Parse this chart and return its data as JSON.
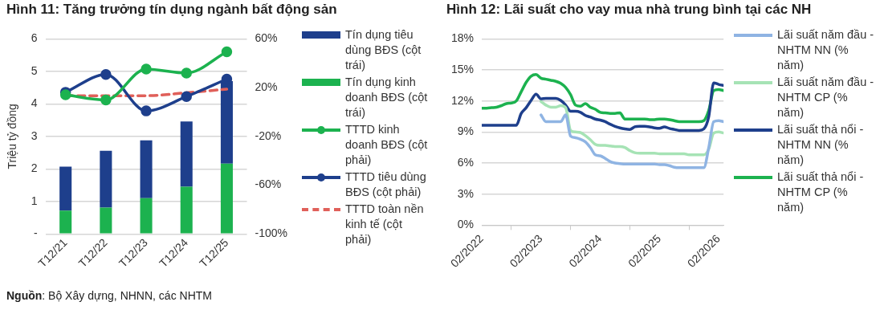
{
  "chart_data": [
    {
      "type": "bar",
      "title": "Hình 11: Tăng trưởng tín dụng ngành bất động sản",
      "ylabel": "Triệu tỷ đồng",
      "stacked": true,
      "categories": [
        "T12/21",
        "T12/22",
        "T12/23",
        "T12/24",
        "T12/25"
      ],
      "series": [
        {
          "name": "Tín dụng kinh doanh BĐS (cột trái)",
          "color": "#1cb24f",
          "values": [
            0.72,
            0.81,
            1.1,
            1.45,
            2.16
          ]
        },
        {
          "name": "Tín dụng tiêu dùng BĐS (cột trái)",
          "color": "#1e3f8c",
          "values": [
            1.35,
            1.75,
            1.78,
            2.01,
            2.54
          ]
        },
        {
          "name": "TTTD kinh doanh BĐS (cột phải)",
          "type": "line",
          "axis": "y2",
          "color": "#1cb24f",
          "marker": "circle",
          "values": [
            14.1,
            9.9,
            35.3,
            32,
            49.4
          ]
        },
        {
          "name": "TTTD tiêu dùng BĐS (cột phải)",
          "type": "line",
          "axis": "y2",
          "color": "#1e3f8c",
          "marker": "circle",
          "values": [
            16.2,
            30.8,
            0.9,
            12.7,
            27
          ]
        },
        {
          "name": "TTTD toàn nền kinh tế (cột phải)",
          "type": "line",
          "axis": "y2",
          "color": "#e0605a",
          "marker": "none",
          "line_style": "dashed",
          "values": [
            13.4,
            13.4,
            13.4,
            15.8,
            18.8
          ]
        }
      ],
      "ylim": [
        0,
        6
      ],
      "yticks": [
        {
          "value": 0,
          "label": "-"
        },
        1,
        2,
        3,
        4,
        5,
        6
      ],
      "y2lim": [
        -100,
        60
      ],
      "y2ticks": [
        {
          "value": -100,
          "label": "-100%"
        },
        {
          "value": -60,
          "label": "-60%"
        },
        {
          "value": -20,
          "label": "-20%"
        },
        {
          "value": 20,
          "label": "20%"
        },
        {
          "value": 60,
          "label": "60%"
        }
      ],
      "grid": "y",
      "legend": "right",
      "annotations": [
        "Nguồn: Bộ Xây dựng, NHNN, các NHTM"
      ]
    },
    {
      "type": "line",
      "title": "Hình 12: Lãi suất cho vay mua nhà trung bình tại các NH",
      "x": [
        "2022-02",
        "2022-03",
        "2022-04",
        "2022-05",
        "2022-06",
        "2022-07",
        "2022-08",
        "2022-09",
        "2022-10",
        "2022-11",
        "2022-12",
        "2023-01",
        "2023-02",
        "2023-03",
        "2023-04",
        "2023-05",
        "2023-06",
        "2023-07",
        "2023-08",
        "2023-09",
        "2023-10",
        "2023-11",
        "2023-12",
        "2024-01",
        "2024-02",
        "2024-03",
        "2024-04",
        "2024-05",
        "2024-06",
        "2024-07",
        "2024-08",
        "2024-09",
        "2024-10",
        "2024-11",
        "2024-12",
        "2025-01",
        "2025-02",
        "2025-03",
        "2025-04",
        "2025-05",
        "2025-06",
        "2025-07",
        "2025-08",
        "2025-09",
        "2025-10",
        "2025-11",
        "2025-12",
        "2026-01",
        "2026-02",
        "2026-03"
      ],
      "series": [
        {
          "name": "Lãi suất năm đầu - NHTM NN (% năm)",
          "color": "#8fb4e3",
          "values": [
            null,
            null,
            null,
            null,
            null,
            null,
            null,
            null,
            null,
            null,
            null,
            null,
            10.65,
            10.0,
            10.0,
            10.0,
            10.0,
            10.65,
            8.6,
            8.45,
            8.3,
            8.05,
            7.5,
            6.8,
            6.7,
            6.45,
            6.15,
            6.0,
            5.95,
            5.9,
            5.9,
            5.9,
            5.9,
            5.9,
            5.9,
            5.9,
            5.85,
            5.85,
            5.75,
            5.6,
            5.55,
            5.55,
            5.55,
            5.55,
            5.55,
            5.55,
            7.5,
            10.0,
            10.1,
            10.0
          ]
        },
        {
          "name": "Lãi suất năm đầu - NHTM CP (% năm)",
          "color": "#a6e3b5",
          "values": [
            null,
            null,
            null,
            null,
            null,
            null,
            null,
            null,
            null,
            null,
            null,
            null,
            11.95,
            11.6,
            11.4,
            11.4,
            11.55,
            11.35,
            9.15,
            9.0,
            8.95,
            8.65,
            8.25,
            7.8,
            7.7,
            7.7,
            7.65,
            7.6,
            7.6,
            7.5,
            7.2,
            7.0,
            6.95,
            6.95,
            6.95,
            6.95,
            6.9,
            6.9,
            6.9,
            6.9,
            6.9,
            6.9,
            6.8,
            6.8,
            6.8,
            6.8,
            7.35,
            8.9,
            9.0,
            8.9
          ]
        },
        {
          "name": "Lãi suất thả nổi - NHTM NN (% năm)",
          "color": "#1e3f8c",
          "values": [
            9.65,
            9.65,
            9.65,
            9.65,
            9.65,
            9.65,
            9.65,
            9.65,
            10.8,
            11.35,
            12.05,
            12.65,
            12.2,
            12.25,
            12.25,
            12.25,
            12.05,
            11.6,
            11.0,
            11.0,
            10.9,
            10.6,
            10.45,
            10.25,
            10.15,
            10.0,
            9.75,
            9.55,
            9.4,
            9.3,
            9.25,
            9.5,
            9.55,
            9.55,
            9.5,
            9.4,
            9.35,
            9.5,
            9.35,
            9.25,
            9.15,
            9.15,
            9.15,
            9.15,
            9.15,
            9.3,
            10.5,
            13.75,
            13.6,
            13.5
          ]
        },
        {
          "name": "Lãi suất thả nổi - NHTM CP (% năm)",
          "color": "#1cb24f",
          "values": [
            11.3,
            11.3,
            11.35,
            11.4,
            11.55,
            11.75,
            11.8,
            12.0,
            12.9,
            13.8,
            14.4,
            14.55,
            14.2,
            14.1,
            14.0,
            13.9,
            13.7,
            13.3,
            12.6,
            11.6,
            11.5,
            11.75,
            11.4,
            11.2,
            10.9,
            10.85,
            10.8,
            10.8,
            10.85,
            10.25,
            10.25,
            10.25,
            10.25,
            10.25,
            10.2,
            10.2,
            10.25,
            10.25,
            10.2,
            10.1,
            10.0,
            10.0,
            10.0,
            10.0,
            10.0,
            10.1,
            11.1,
            13.0,
            13.1,
            13.0
          ]
        }
      ],
      "xlim": [
        "2022-02",
        "2026-03"
      ],
      "xticks": [
        {
          "value": "2022-02",
          "label": "02/2022"
        },
        {
          "value": "2023-02",
          "label": "02/2023"
        },
        {
          "value": "2024-02",
          "label": "02/2024"
        },
        {
          "value": "2025-02",
          "label": "02/2025"
        },
        {
          "value": "2026-02",
          "label": "02/2026"
        }
      ],
      "ylim": [
        0,
        18
      ],
      "yticks": [
        {
          "value": 0,
          "label": "0%"
        },
        {
          "value": 3,
          "label": "3%"
        },
        {
          "value": 6,
          "label": "6%"
        },
        {
          "value": 9,
          "label": "9%"
        },
        {
          "value": 12,
          "label": "12%"
        },
        {
          "value": 15,
          "label": "15%"
        },
        {
          "value": 18,
          "label": "18%"
        }
      ],
      "grid": "y",
      "legend": "right"
    }
  ]
}
